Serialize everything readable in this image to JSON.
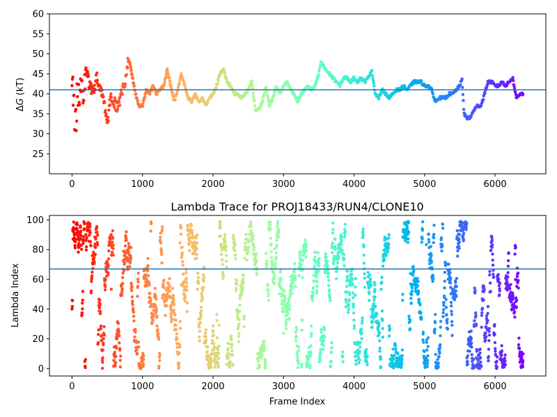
{
  "chart_data": [
    {
      "type": "scatter",
      "title": "",
      "xlabel": "",
      "ylabel_prefix": "Δ",
      "ylabel_symbol": "G",
      "ylabel_suffix": " (kT)",
      "xlim": [
        -320,
        6720
      ],
      "ylim": [
        20,
        60
      ],
      "xticks": [
        0,
        1000,
        2000,
        3000,
        4000,
        5000,
        6000
      ],
      "yticks": [
        25,
        30,
        35,
        40,
        45,
        50,
        55,
        60
      ],
      "hline": 41,
      "hline_color": "#1f77b4",
      "colormap": "rainbow",
      "x_max": 6400,
      "trace_knots": [
        [
          0,
          46
        ],
        [
          20,
          40
        ],
        [
          40,
          33
        ],
        [
          60,
          35
        ],
        [
          80,
          42
        ],
        [
          100,
          37
        ],
        [
          130,
          44
        ],
        [
          160,
          38
        ],
        [
          200,
          46
        ],
        [
          250,
          42
        ],
        [
          300,
          40
        ],
        [
          350,
          44
        ],
        [
          400,
          41
        ],
        [
          450,
          39
        ],
        [
          500,
          32
        ],
        [
          550,
          40
        ],
        [
          600,
          38
        ],
        [
          650,
          36
        ],
        [
          700,
          40
        ],
        [
          750,
          43
        ],
        [
          800,
          49
        ],
        [
          850,
          45
        ],
        [
          900,
          40
        ],
        [
          950,
          37
        ],
        [
          1000,
          37
        ],
        [
          1050,
          41
        ],
        [
          1100,
          40
        ],
        [
          1150,
          42
        ],
        [
          1200,
          40
        ],
        [
          1250,
          41
        ],
        [
          1300,
          42
        ],
        [
          1350,
          46
        ],
        [
          1400,
          42
        ],
        [
          1450,
          38
        ],
        [
          1500,
          41
        ],
        [
          1550,
          45
        ],
        [
          1600,
          42
        ],
        [
          1650,
          39
        ],
        [
          1700,
          38
        ],
        [
          1750,
          40
        ],
        [
          1800,
          38
        ],
        [
          1850,
          39
        ],
        [
          1900,
          37
        ],
        [
          1950,
          39
        ],
        [
          2000,
          40
        ],
        [
          2050,
          42
        ],
        [
          2100,
          45
        ],
        [
          2150,
          46
        ],
        [
          2200,
          43
        ],
        [
          2250,
          42
        ],
        [
          2300,
          40
        ],
        [
          2350,
          40
        ],
        [
          2400,
          39
        ],
        [
          2450,
          40
        ],
        [
          2500,
          41
        ],
        [
          2550,
          43
        ],
        [
          2600,
          36
        ],
        [
          2650,
          36
        ],
        [
          2700,
          38
        ],
        [
          2750,
          42
        ],
        [
          2800,
          37
        ],
        [
          2850,
          39
        ],
        [
          2900,
          42
        ],
        [
          2950,
          40
        ],
        [
          3000,
          42
        ],
        [
          3050,
          43
        ],
        [
          3100,
          41
        ],
        [
          3150,
          40
        ],
        [
          3200,
          38
        ],
        [
          3250,
          40
        ],
        [
          3300,
          41
        ],
        [
          3350,
          42
        ],
        [
          3400,
          41
        ],
        [
          3450,
          42
        ],
        [
          3500,
          45
        ],
        [
          3530,
          48
        ],
        [
          3600,
          46
        ],
        [
          3650,
          45
        ],
        [
          3700,
          44
        ],
        [
          3750,
          43
        ],
        [
          3800,
          42
        ],
        [
          3850,
          44
        ],
        [
          3900,
          44
        ],
        [
          3950,
          43
        ],
        [
          4000,
          44
        ],
        [
          4050,
          43
        ],
        [
          4100,
          44
        ],
        [
          4150,
          43
        ],
        [
          4200,
          44
        ],
        [
          4250,
          46
        ],
        [
          4300,
          40
        ],
        [
          4350,
          39
        ],
        [
          4400,
          41
        ],
        [
          4450,
          40
        ],
        [
          4500,
          39
        ],
        [
          4550,
          40
        ],
        [
          4600,
          41
        ],
        [
          4650,
          41
        ],
        [
          4700,
          42
        ],
        [
          4750,
          41
        ],
        [
          4800,
          42
        ],
        [
          4850,
          43
        ],
        [
          4900,
          43
        ],
        [
          4950,
          43
        ],
        [
          5000,
          42
        ],
        [
          5050,
          42
        ],
        [
          5100,
          41
        ],
        [
          5150,
          38
        ],
        [
          5200,
          39
        ],
        [
          5250,
          39
        ],
        [
          5300,
          39
        ],
        [
          5350,
          40
        ],
        [
          5400,
          40
        ],
        [
          5450,
          41
        ],
        [
          5500,
          42
        ],
        [
          5530,
          44
        ],
        [
          5560,
          35
        ],
        [
          5600,
          34
        ],
        [
          5650,
          34
        ],
        [
          5700,
          36
        ],
        [
          5750,
          37
        ],
        [
          5800,
          37
        ],
        [
          5850,
          40
        ],
        [
          5900,
          43
        ],
        [
          5950,
          43
        ],
        [
          6000,
          42
        ],
        [
          6050,
          42
        ],
        [
          6100,
          43
        ],
        [
          6150,
          42
        ],
        [
          6200,
          43
        ],
        [
          6250,
          44
        ],
        [
          6300,
          39
        ],
        [
          6350,
          40
        ],
        [
          6400,
          40
        ]
      ]
    },
    {
      "type": "scatter",
      "title": "Lambda Trace for PROJ18433/RUN4/CLONE10",
      "xlabel": "Frame Index",
      "ylabel": "Lambda Index",
      "xlim": [
        -320,
        6720
      ],
      "ylim": [
        -5,
        103
      ],
      "xticks": [
        0,
        1000,
        2000,
        3000,
        4000,
        5000,
        6000
      ],
      "yticks": [
        0,
        20,
        40,
        60,
        80,
        100
      ],
      "hline": 67,
      "hline_color": "#1f77b4",
      "colormap": "rainbow",
      "x_max": 6400,
      "value_range": [
        0,
        99
      ]
    }
  ]
}
